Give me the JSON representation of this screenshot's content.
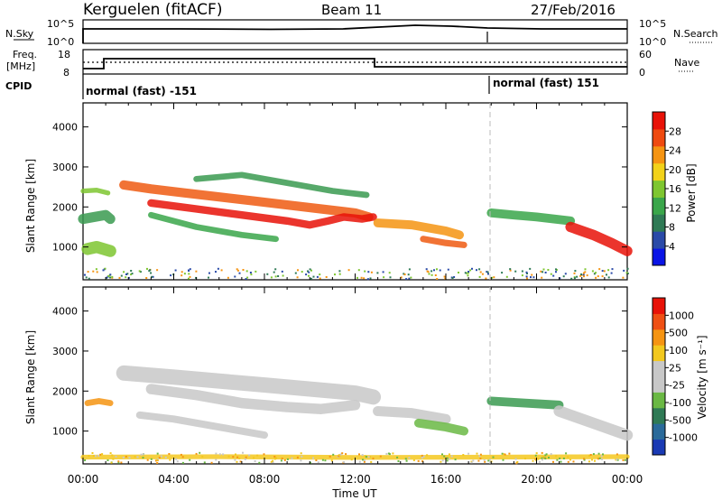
{
  "header": {
    "station": "Kerguelen (fitACF)",
    "beam": "Beam 11",
    "date": "27/Feb/2016"
  },
  "nsky_panel": {
    "left_label": "N.Sky",
    "right_label": "N.Search",
    "ticks": [
      "10^5",
      "10^0"
    ],
    "right_ticks": [
      "10^5",
      "10^0"
    ]
  },
  "freq_panel": {
    "left_label_1": "Freq.",
    "left_label_2": "[MHz]",
    "right_label": "Nave",
    "left_ticks": [
      "18",
      "8"
    ],
    "right_ticks": [
      "60",
      "0"
    ]
  },
  "cpid_panel": {
    "label": "CPID",
    "modes": [
      {
        "text": "normal (fast) -151",
        "start_hour": 0
      },
      {
        "text": "normal (fast) 151",
        "start_hour": 18
      }
    ]
  },
  "power_colorbar": {
    "label": "Power [dB]",
    "ticks": [
      "28",
      "24",
      "20",
      "16",
      "12",
      "8",
      "4"
    ],
    "colors": [
      "#0a14e6",
      "#2a4aa8",
      "#2f7a55",
      "#3aa64a",
      "#7ec630",
      "#f2d21a",
      "#f59412",
      "#ef4a10",
      "#e81208"
    ]
  },
  "velocity_colorbar": {
    "label": "Velocity [m s⁻¹]",
    "ticks": [
      "1000",
      "500",
      "100",
      "25",
      "-25",
      "-100",
      "-500",
      "-1000"
    ],
    "colors": [
      "#1a3ab4",
      "#2a6a9a",
      "#2f7a55",
      "#6ab844",
      "#c8c8c8",
      "#c8c8c8",
      "#f2c81e",
      "#f59412",
      "#ef5014",
      "#e81208"
    ]
  },
  "chart_data": {
    "type": "heatmap",
    "xlabel": "Time UT",
    "ylabel": "Slant Range [km]",
    "x_ticks": [
      "00:00",
      "04:00",
      "08:00",
      "12:00",
      "16:00",
      "20:00",
      "00:00"
    ],
    "y_ticks": [
      "4000",
      "3000",
      "2000",
      "1000"
    ],
    "xlim": [
      0,
      24
    ],
    "ylim": [
      180,
      4600
    ],
    "marker_hour": 18,
    "series": [
      {
        "name": "Power",
        "bands": [
          {
            "x": [
              0,
              0.5,
              1.0,
              1.2
            ],
            "y": [
              1700,
              1750,
              1800,
              1700
            ],
            "w": 250,
            "c": "#3a9a50"
          },
          {
            "x": [
              0,
              0.6,
              1.1
            ],
            "y": [
              2400,
              2420,
              2350
            ],
            "w": 120,
            "c": "#7ec630"
          },
          {
            "x": [
              0.2,
              0.6,
              1.2
            ],
            "y": [
              950,
              1000,
              900
            ],
            "w": 300,
            "c": "#7ec630"
          },
          {
            "x": [
              1.8,
              3,
              4.5,
              6,
              7.5,
              9,
              10.5,
              12,
              12.6
            ],
            "y": [
              2550,
              2450,
              2350,
              2250,
              2150,
              2050,
              1950,
              1850,
              1750
            ],
            "w": 230,
            "c": "#ef5a12"
          },
          {
            "x": [
              3,
              5,
              7,
              9,
              10,
              10.8,
              11.5,
              12.3,
              12.8
            ],
            "y": [
              2100,
              1950,
              1800,
              1650,
              1550,
              1650,
              1750,
              1700,
              1750
            ],
            "w": 190,
            "c": "#e81208"
          },
          {
            "x": [
              3,
              5,
              7,
              8.5
            ],
            "y": [
              1800,
              1500,
              1300,
              1200
            ],
            "w": 150,
            "c": "#3aa64a"
          },
          {
            "x": [
              5,
              7,
              9,
              11,
              12.5
            ],
            "y": [
              2700,
              2800,
              2600,
              2400,
              2300
            ],
            "w": 150,
            "c": "#3a9a50"
          },
          {
            "x": [
              13,
              14.5,
              16,
              16.6
            ],
            "y": [
              1600,
              1550,
              1400,
              1300
            ],
            "w": 220,
            "c": "#f59412"
          },
          {
            "x": [
              15,
              16,
              16.8
            ],
            "y": [
              1200,
              1100,
              1050
            ],
            "w": 160,
            "c": "#ef5a12"
          },
          {
            "x": [
              18,
              19,
              20,
              21.5
            ],
            "y": [
              1850,
              1800,
              1750,
              1650
            ],
            "w": 220,
            "c": "#3aa64a"
          },
          {
            "x": [
              21.5,
              22.5,
              23.3,
              24
            ],
            "y": [
              1500,
              1300,
              1100,
              900
            ],
            "w": 260,
            "c": "#e81208"
          }
        ]
      },
      {
        "name": "Velocity",
        "bands": [
          {
            "x": [
              0.2,
              0.7,
              1.2
            ],
            "y": [
              1700,
              1750,
              1700
            ],
            "w": 150,
            "c": "#f59412"
          },
          {
            "x": [
              1.8,
              4,
              6,
              8,
              10,
              12,
              12.8
            ],
            "y": [
              2450,
              2350,
              2250,
              2150,
              2050,
              1950,
              1850
            ],
            "w": 380,
            "c": "#c8c8c8"
          },
          {
            "x": [
              3,
              5,
              7,
              9,
              10.5,
              12
            ],
            "y": [
              2050,
              1900,
              1700,
              1600,
              1550,
              1650
            ],
            "w": 260,
            "c": "#c8c8c8"
          },
          {
            "x": [
              2.5,
              4,
              6,
              8
            ],
            "y": [
              1400,
              1300,
              1100,
              900
            ],
            "w": 180,
            "c": "#c8c8c8"
          },
          {
            "x": [
              13,
              14.5,
              16
            ],
            "y": [
              1500,
              1450,
              1300
            ],
            "w": 250,
            "c": "#c8c8c8"
          },
          {
            "x": [
              14.8,
              16,
              16.8
            ],
            "y": [
              1200,
              1100,
              1000
            ],
            "w": 220,
            "c": "#6ab844"
          },
          {
            "x": [
              18,
              19.5,
              21
            ],
            "y": [
              1750,
              1700,
              1650
            ],
            "w": 220,
            "c": "#3a9a50"
          },
          {
            "x": [
              21,
              22.5,
              24
            ],
            "y": [
              1500,
              1200,
              900
            ],
            "w": 280,
            "c": "#c8c8c8"
          },
          {
            "x": [
              0,
              6,
              12,
              18,
              24
            ],
            "y": [
              350,
              360,
              340,
              350,
              360
            ],
            "w": 120,
            "c": "#f5c81e"
          }
        ]
      }
    ]
  }
}
